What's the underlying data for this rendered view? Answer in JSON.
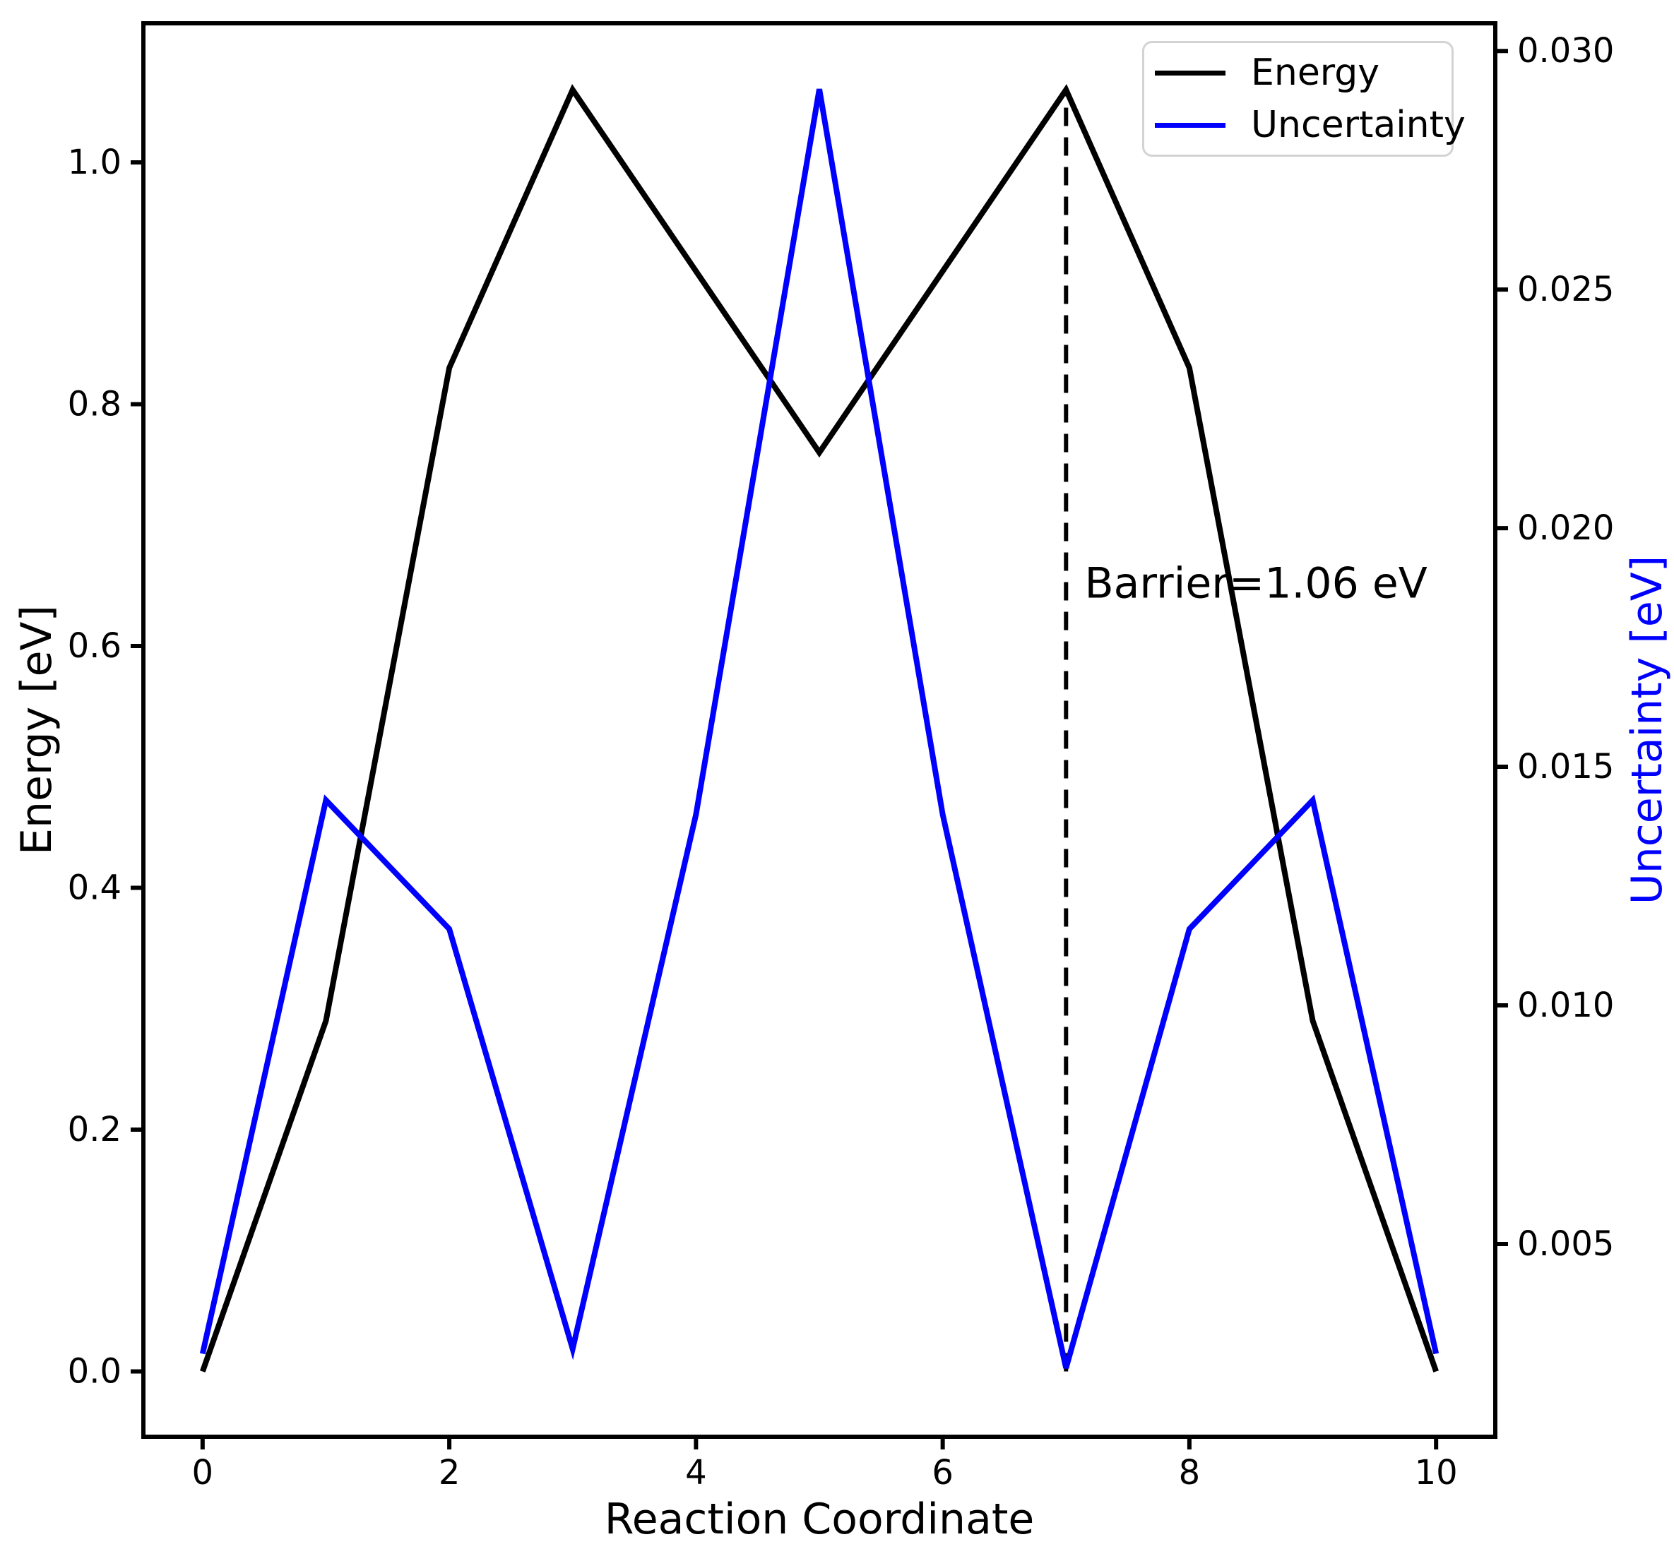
{
  "figure": {
    "background": "#ffffff"
  },
  "chart_data": {
    "type": "line",
    "title": "",
    "x": [
      0,
      1,
      2,
      3,
      4,
      5,
      6,
      7,
      8,
      9,
      10
    ],
    "series": [
      {
        "name": "Energy",
        "color": "#000000",
        "axis": "left",
        "values": [
          0.0,
          0.29,
          0.83,
          1.06,
          0.91,
          0.76,
          0.91,
          1.06,
          0.83,
          0.29,
          0.0
        ]
      },
      {
        "name": "Uncertainty",
        "color": "#0000ff",
        "axis": "right",
        "values": [
          0.0027,
          0.0143,
          0.0116,
          0.0028,
          0.014,
          0.0292,
          0.014,
          0.0024,
          0.0116,
          0.0143,
          0.0027
        ]
      }
    ],
    "xlabel": "Reaction Coordinate",
    "ylabel_left": "Energy [eV]",
    "ylabel_right": "Uncertainty [eV]",
    "xlim": [
      -0.48,
      10.48
    ],
    "ylim_left": [
      -0.054,
      1.115
    ],
    "ylim_right": [
      0.00096,
      0.03058
    ],
    "xticks": [
      0,
      2,
      4,
      6,
      8,
      10
    ],
    "yticks_left": [
      "0.0",
      "0.2",
      "0.4",
      "0.6",
      "0.8",
      "1.0"
    ],
    "yticks_right": [
      "0.005",
      "0.010",
      "0.015",
      "0.020",
      "0.025",
      "0.030"
    ],
    "legend": {
      "position": "upper-right",
      "entries": [
        "Energy",
        "Uncertainty"
      ]
    },
    "annotation": {
      "text": "Barrier=1.06 eV",
      "x": 7.15,
      "y": 0.64
    },
    "vline": {
      "x": 7,
      "y0": 0.0,
      "y1": 1.06,
      "style": "dashed",
      "color": "#000000"
    },
    "grid": false
  }
}
